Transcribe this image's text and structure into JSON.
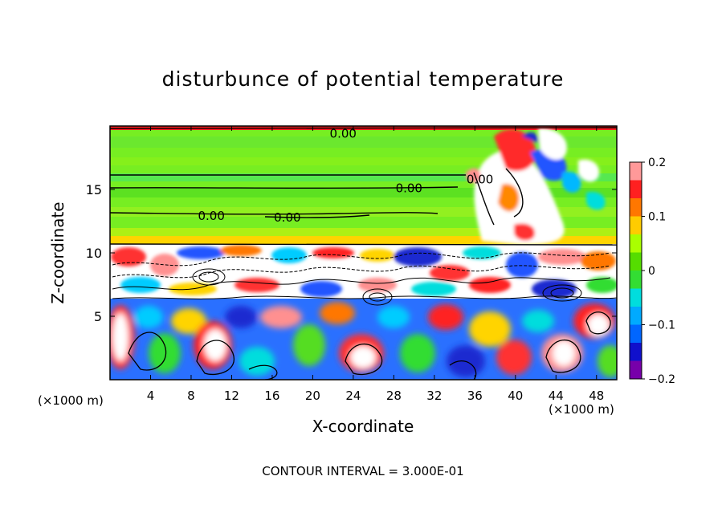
{
  "chart_data": {
    "type": "heatmap",
    "title": "disturbunce of potential temperature",
    "xlabel": "X-coordinate",
    "ylabel": "Z-coordinate",
    "x_unit": "(×1000 m)",
    "z_unit": "(×1000 m)",
    "footer": "CONTOUR INTERVAL = 3.000E-01",
    "xlim": [
      0,
      50
    ],
    "ylim": [
      0,
      20
    ],
    "x_ticks": [
      4,
      8,
      12,
      16,
      20,
      24,
      28,
      32,
      36,
      40,
      44,
      48
    ],
    "y_ticks": [
      5,
      10,
      15
    ],
    "colorbar": {
      "range": [
        -0.2,
        0.2
      ],
      "tick_values": [
        0.2,
        0.1,
        0,
        -0.1,
        -0.2
      ],
      "tick_labels": [
        "0.2",
        "0.1",
        "0",
        "−0.1",
        "−0.2"
      ],
      "colors": [
        "#ff9999",
        "#ff2020",
        "#ff7700",
        "#ffcc00",
        "#aaff00",
        "#55dd00",
        "#33dd33",
        "#00dddd",
        "#00aaff",
        "#0066ff",
        "#1010cc",
        "#7700aa"
      ]
    },
    "contour_labels": [
      {
        "x": 23.0,
        "z": 19.4,
        "text": "0.00"
      },
      {
        "x": 29.5,
        "z": 15.1,
        "text": "0.00"
      },
      {
        "x": 36.5,
        "z": 15.8,
        "text": "0.00"
      },
      {
        "x": 10.0,
        "z": 12.9,
        "text": "0.00"
      },
      {
        "x": 17.5,
        "z": 12.8,
        "text": "0.00"
      }
    ],
    "regions": {
      "upper_layer": {
        "z_range": [
          10.7,
          20
        ],
        "dominant_value": 0.0
      },
      "tropopause_band": {
        "z_range": [
          5.5,
          10.7
        ],
        "pattern": "mixed strong positive and negative"
      },
      "lower_layer": {
        "z_range": [
          0,
          5.5
        ],
        "pattern": "alternating cells of ±0.2"
      }
    }
  }
}
